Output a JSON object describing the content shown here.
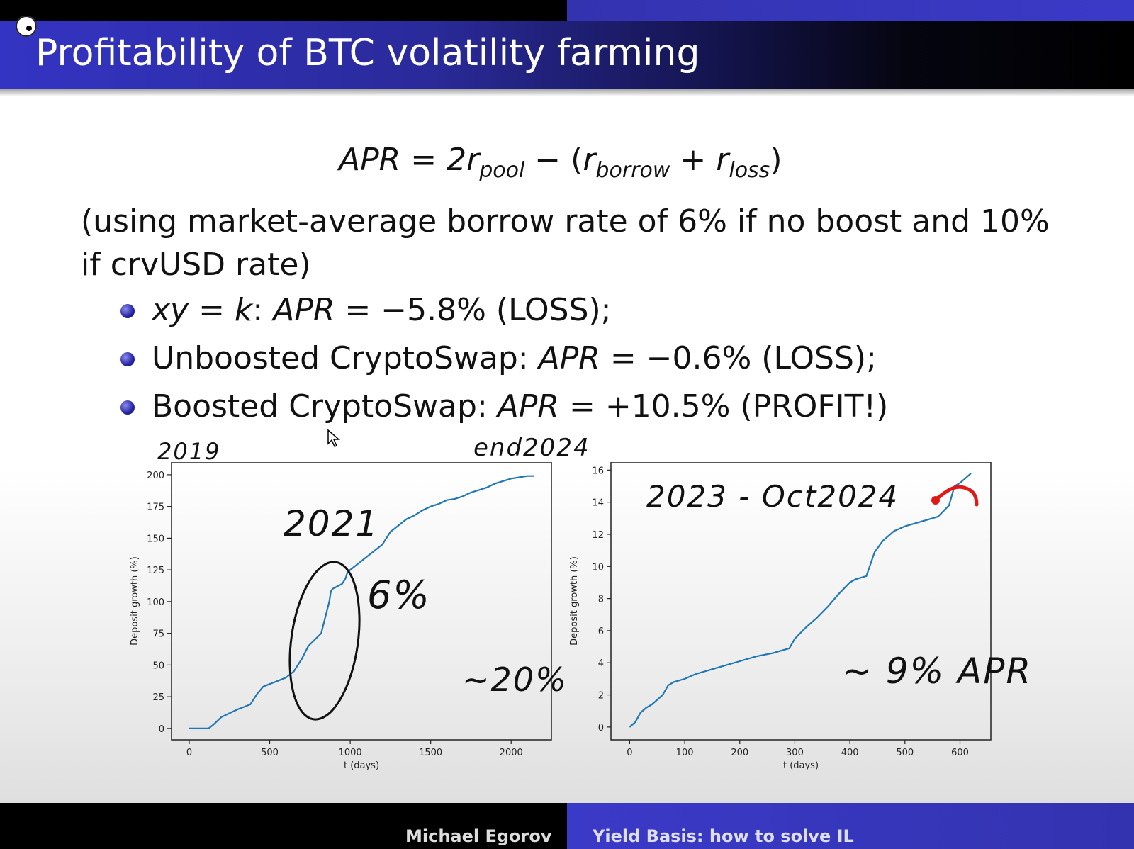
{
  "slide": {
    "title": "Profitability of BTC volatility farming",
    "formula": {
      "lhs": "APR",
      "eq": "=",
      "coef": "2r",
      "pool": "pool",
      "minus": "−",
      "open": "(",
      "r1": "r",
      "borrow": "borrow",
      "plus": "+",
      "r2": "r",
      "loss": "loss",
      "close": ")"
    },
    "note": "(using market-average borrow rate of 6% if no boost and 10% if crvUSD rate)",
    "bullets": [
      {
        "math": "xy = k",
        "sep": ": ",
        "apr": "APR",
        "text": " = −5.8% (LOSS);"
      },
      {
        "math": "",
        "sep": "Unboosted CryptoSwap: ",
        "apr": "APR",
        "text": " = −0.6% (LOSS);"
      },
      {
        "math": "",
        "sep": "Boosted CryptoSwap: ",
        "apr": "APR",
        "text": " = +10.5% (PROFIT!)"
      }
    ]
  },
  "annotations": {
    "a2019": "2019",
    "end2024": "end2024",
    "a2021": "2021",
    "six_pct": "6%",
    "twenty_pct": "~20%",
    "oct2024": "2023 - Oct2024",
    "nine_apr": "~ 9% APR"
  },
  "colors": {
    "line": "#1f77b4",
    "annotation_red": "#e01818"
  },
  "chart_data": [
    {
      "type": "line",
      "xlabel": "t (days)",
      "ylabel": "Deposit growth (%)",
      "xlim": [
        -110,
        2250
      ],
      "ylim": [
        -9,
        210
      ],
      "xticks": [
        0,
        500,
        1000,
        1500,
        2000
      ],
      "yticks": [
        0,
        25,
        50,
        75,
        100,
        125,
        150,
        175,
        200
      ],
      "x": [
        0,
        120,
        150,
        200,
        250,
        300,
        340,
        380,
        420,
        460,
        500,
        540,
        600,
        650,
        700,
        740,
        780,
        820,
        850,
        870,
        880,
        890,
        920,
        950,
        970,
        980,
        1000,
        1050,
        1100,
        1150,
        1200,
        1250,
        1300,
        1350,
        1400,
        1450,
        1500,
        1550,
        1600,
        1650,
        1700,
        1750,
        1800,
        1850,
        1900,
        1950,
        2000,
        2050,
        2100,
        2140
      ],
      "y": [
        0,
        0,
        3,
        9,
        12,
        15,
        17,
        19,
        27,
        33,
        35,
        37,
        40,
        45,
        55,
        65,
        70,
        75,
        90,
        100,
        108,
        110,
        112,
        114,
        118,
        122,
        125,
        130,
        135,
        140,
        145,
        155,
        160,
        165,
        168,
        172,
        175,
        177,
        180,
        181,
        183,
        186,
        188,
        190,
        193,
        195,
        197,
        198,
        199,
        199
      ]
    },
    {
      "type": "line",
      "xlabel": "t (days)",
      "ylabel": "Deposit growth (%)",
      "xlim": [
        -34,
        656
      ],
      "ylim": [
        -0.8,
        16.5
      ],
      "xticks": [
        0,
        100,
        200,
        300,
        400,
        500,
        600
      ],
      "yticks": [
        0,
        2,
        4,
        6,
        8,
        10,
        12,
        14,
        16
      ],
      "x": [
        0,
        10,
        20,
        30,
        40,
        50,
        60,
        70,
        80,
        100,
        120,
        150,
        180,
        200,
        230,
        260,
        290,
        300,
        320,
        340,
        360,
        380,
        400,
        410,
        430,
        445,
        460,
        480,
        500,
        520,
        540,
        560,
        580,
        590,
        600,
        610,
        620
      ],
      "y": [
        0,
        0.3,
        0.9,
        1.2,
        1.4,
        1.7,
        2.0,
        2.6,
        2.8,
        3.0,
        3.3,
        3.6,
        3.9,
        4.1,
        4.4,
        4.6,
        4.9,
        5.5,
        6.2,
        6.8,
        7.5,
        8.3,
        9.0,
        9.2,
        9.4,
        10.9,
        11.6,
        12.2,
        12.5,
        12.7,
        12.9,
        13.1,
        13.8,
        15.0,
        15.2,
        15.5,
        15.8
      ]
    }
  ],
  "footer": {
    "author": "Michael Egorov",
    "talk": "Yield Basis: how to solve IL"
  }
}
